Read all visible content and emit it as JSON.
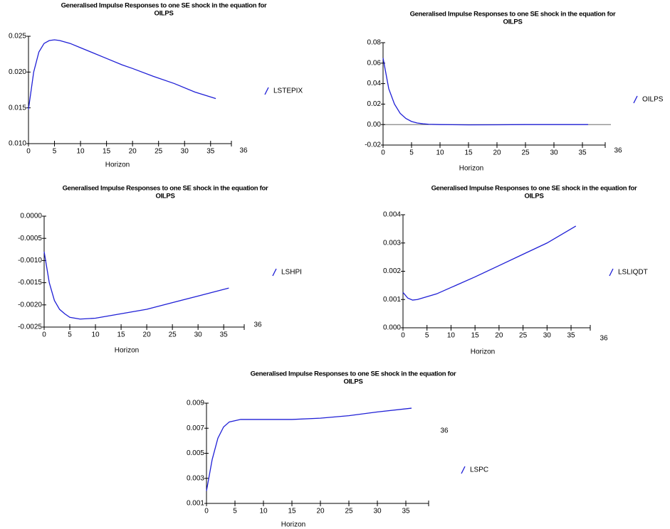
{
  "chart_data": [
    {
      "type": "line",
      "title": [
        "Generalised Impulse Responses to one SE shock in the equation for",
        "OILPS"
      ],
      "xlabel": "Horizon",
      "end_label": "36",
      "x": [
        0,
        1,
        2,
        3,
        4,
        5,
        6,
        8,
        10,
        12,
        15,
        18,
        20,
        24,
        28,
        32,
        36
      ],
      "series": [
        {
          "name": "LSTEPIX",
          "color": "#1f1fd6",
          "values": [
            0.0148,
            0.02,
            0.0228,
            0.024,
            0.0244,
            0.0245,
            0.0244,
            0.024,
            0.0234,
            0.0228,
            0.0219,
            0.021,
            0.0205,
            0.0194,
            0.0184,
            0.0172,
            0.0163
          ]
        }
      ],
      "xlim": [
        0,
        39
      ],
      "xticks": [
        0,
        5,
        10,
        15,
        20,
        25,
        30,
        35
      ],
      "ylim": [
        0.01,
        0.025
      ],
      "yticks": [
        {
          "value": 0.01,
          "label": "0.010"
        },
        {
          "value": 0.015,
          "label": "0.015"
        },
        {
          "value": 0.02,
          "label": "0.020"
        },
        {
          "value": 0.025,
          "label": "0.025"
        }
      ],
      "zero_line": false
    },
    {
      "type": "line",
      "title": [
        "Generalised Impulse Responses to one SE shock in the equation for",
        "OILPS"
      ],
      "xlabel": "Horizon",
      "end_label": "36",
      "x": [
        0,
        1,
        2,
        3,
        4,
        5,
        6,
        7,
        8,
        10,
        15,
        20,
        25,
        30,
        36
      ],
      "series": [
        {
          "name": "OILPS",
          "color": "#1f1fd6",
          "values": [
            0.065,
            0.035,
            0.02,
            0.011,
            0.006,
            0.003,
            0.0015,
            0.0008,
            0.0003,
            0,
            -0.0003,
            -0.0002,
            0,
            0,
            0
          ]
        }
      ],
      "xlim": [
        0,
        39
      ],
      "xticks": [
        0,
        5,
        10,
        15,
        20,
        25,
        30,
        35
      ],
      "ylim": [
        -0.02,
        0.08
      ],
      "yticks": [
        {
          "value": -0.02,
          "label": "-0.02"
        },
        {
          "value": 0,
          "label": "0.00"
        },
        {
          "value": 0.02,
          "label": "0.02"
        },
        {
          "value": 0.04,
          "label": "0.04"
        },
        {
          "value": 0.06,
          "label": "0.06"
        },
        {
          "value": 0.08,
          "label": "0.08"
        }
      ],
      "zero_line": true
    },
    {
      "type": "line",
      "title": [
        "Generalised Impulse Responses to one SE shock in the equation for",
        "OILPS"
      ],
      "xlabel": "Horizon",
      "end_label": "36",
      "x": [
        0,
        1,
        2,
        3,
        4,
        5,
        7,
        10,
        15,
        20,
        25,
        30,
        36
      ],
      "series": [
        {
          "name": "LSHPI",
          "color": "#1f1fd6",
          "values": [
            -0.0008,
            -0.0015,
            -0.0019,
            -0.0021,
            -0.0022,
            -0.00228,
            -0.00232,
            -0.0023,
            -0.0022,
            -0.0021,
            -0.00195,
            -0.0018,
            -0.00162
          ]
        }
      ],
      "xlim": [
        0,
        39
      ],
      "xticks": [
        0,
        5,
        10,
        15,
        20,
        25,
        30,
        35
      ],
      "ylim": [
        -0.0025,
        0
      ],
      "yticks": [
        {
          "value": -0.0025,
          "label": "-0.0025"
        },
        {
          "value": -0.002,
          "label": "-0.0020"
        },
        {
          "value": -0.0015,
          "label": "-0.0015"
        },
        {
          "value": -0.001,
          "label": "-0.0010"
        },
        {
          "value": -0.0005,
          "label": "-0.0005"
        },
        {
          "value": 0,
          "label": "0.0000"
        }
      ],
      "zero_line": false
    },
    {
      "type": "line",
      "title": [
        "Generalised Impulse Responses to one SE shock in the equation for",
        "OILPS"
      ],
      "xlabel": "Horizon",
      "end_label": "36",
      "x": [
        0,
        1,
        2,
        3,
        4,
        7,
        11,
        15,
        20,
        25,
        30,
        36
      ],
      "series": [
        {
          "name": "LSLIQDT",
          "color": "#1f1fd6",
          "values": [
            0.00125,
            0.00105,
            0.00098,
            0.001,
            0.00105,
            0.0012,
            0.0015,
            0.0018,
            0.0022,
            0.0026,
            0.003,
            0.0036
          ]
        }
      ],
      "xlim": [
        0,
        39
      ],
      "xticks": [
        0,
        5,
        10,
        15,
        20,
        25,
        30,
        35
      ],
      "ylim": [
        0,
        0.004
      ],
      "yticks": [
        {
          "value": 0,
          "label": "0.000"
        },
        {
          "value": 0.001,
          "label": "0.001"
        },
        {
          "value": 0.002,
          "label": "0.002"
        },
        {
          "value": 0.003,
          "label": "0.003"
        },
        {
          "value": 0.004,
          "label": "0.004"
        }
      ],
      "zero_line": false
    },
    {
      "type": "line",
      "title": [
        "Generalised Impulse Responses to one SE shock in the equation for",
        "OILPS"
      ],
      "xlabel": "Horizon",
      "end_label": "36",
      "x": [
        0,
        1,
        2,
        3,
        4,
        6,
        10,
        15,
        20,
        25,
        30,
        36
      ],
      "series": [
        {
          "name": "LSPC",
          "color": "#1f1fd6",
          "values": [
            0.002,
            0.0045,
            0.0062,
            0.0071,
            0.0075,
            0.0077,
            0.0077,
            0.0077,
            0.0078,
            0.008,
            0.0083,
            0.0086
          ]
        }
      ],
      "xlim": [
        0,
        39
      ],
      "xticks": [
        0,
        5,
        10,
        15,
        20,
        25,
        30,
        35
      ],
      "ylim": [
        0.001,
        0.009
      ],
      "yticks": [
        {
          "value": 0.001,
          "label": "0.001"
        },
        {
          "value": 0.003,
          "label": "0.003"
        },
        {
          "value": 0.005,
          "label": "0.005"
        },
        {
          "value": 0.007,
          "label": "0.007"
        },
        {
          "value": 0.009,
          "label": "0.009"
        }
      ],
      "zero_line": false
    }
  ]
}
